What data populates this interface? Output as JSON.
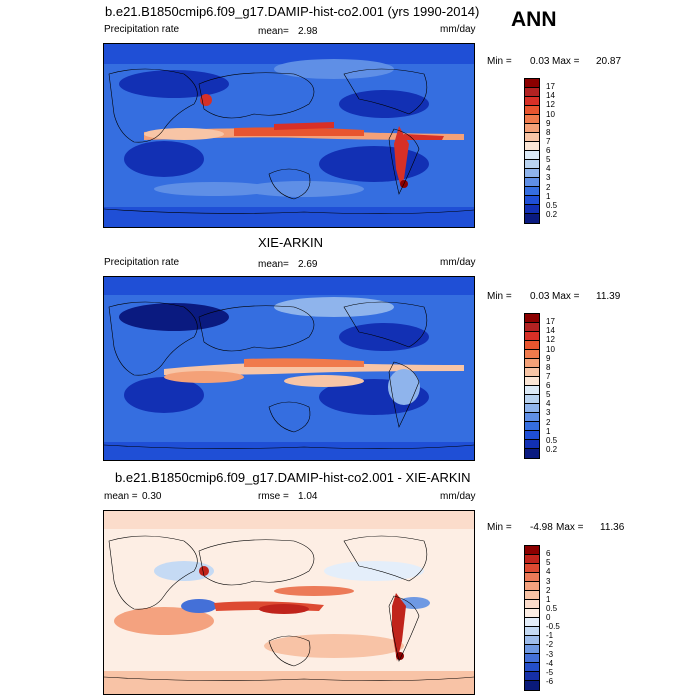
{
  "season": "ANN",
  "panels": [
    {
      "id": "model",
      "title": "b.e21.B1850cmip6.f09_g17.DAMIP-hist-co2.001 (yrs 1990-2014)",
      "left_label": "Precipitation rate",
      "stat1_label": "mean=",
      "stat1_value": "2.98",
      "stat2_label": "",
      "stat2_value": "",
      "units": "mm/day",
      "min_label": "Min =",
      "min_value": "0.03",
      "max_label": "Max =",
      "max_value": "20.87",
      "colorbar": {
        "labels": [
          "17",
          "14",
          "12",
          "10",
          "9",
          "8",
          "7",
          "6",
          "5",
          "4",
          "3",
          "2",
          "1",
          "0.5",
          "0.2"
        ],
        "colors": [
          "#8b0000",
          "#b22222",
          "#d73027",
          "#e8552f",
          "#f07a4c",
          "#f4a178",
          "#f8c5a6",
          "#fbe6d6",
          "#dceaf7",
          "#b9d3f0",
          "#8fb4ec",
          "#5f8fe6",
          "#356ee0",
          "#1f4fd6",
          "#1230b4",
          "#0a1a80"
        ]
      }
    },
    {
      "id": "obs",
      "title": "XIE-ARKIN",
      "left_label": "Precipitation rate",
      "stat1_label": "mean=",
      "stat1_value": "2.69",
      "stat2_label": "",
      "stat2_value": "",
      "units": "mm/day",
      "min_label": "Min =",
      "min_value": "0.03",
      "max_label": "Max =",
      "max_value": "11.39",
      "colorbar": {
        "labels": [
          "17",
          "14",
          "12",
          "10",
          "9",
          "8",
          "7",
          "6",
          "5",
          "4",
          "3",
          "2",
          "1",
          "0.5",
          "0.2"
        ],
        "colors": [
          "#8b0000",
          "#b22222",
          "#d73027",
          "#e8552f",
          "#f07a4c",
          "#f4a178",
          "#f8c5a6",
          "#fbe6d6",
          "#dceaf7",
          "#b9d3f0",
          "#8fb4ec",
          "#5f8fe6",
          "#356ee0",
          "#1f4fd6",
          "#1230b4",
          "#0a1a80"
        ]
      }
    },
    {
      "id": "diff",
      "title": "b.e21.B1850cmip6.f09_g17.DAMIP-hist-co2.001 - XIE-ARKIN",
      "left_label": "",
      "stat1_label": "mean =",
      "stat1_value": "0.30",
      "stat2_label": "rmse =",
      "stat2_value": "1.04",
      "units": "mm/day",
      "min_label": "Min =",
      "min_value": "-4.98",
      "max_label": "Max =",
      "max_value": "11.36",
      "colorbar": {
        "labels": [
          "6",
          "5",
          "4",
          "3",
          "2",
          "1",
          "0.5",
          "0",
          "-0.5",
          "-1",
          "-2",
          "-3",
          "-4",
          "-5",
          "-6"
        ],
        "colors": [
          "#8b0000",
          "#c0241c",
          "#dd4a32",
          "#ec7a58",
          "#f4a27f",
          "#f8c3a6",
          "#fbdccb",
          "#fdeee4",
          "#e4eefa",
          "#c5daf4",
          "#9ebdec",
          "#6f99e3",
          "#4470d8",
          "#244ec9",
          "#1630a8",
          "#0a1a7a"
        ]
      }
    }
  ]
}
